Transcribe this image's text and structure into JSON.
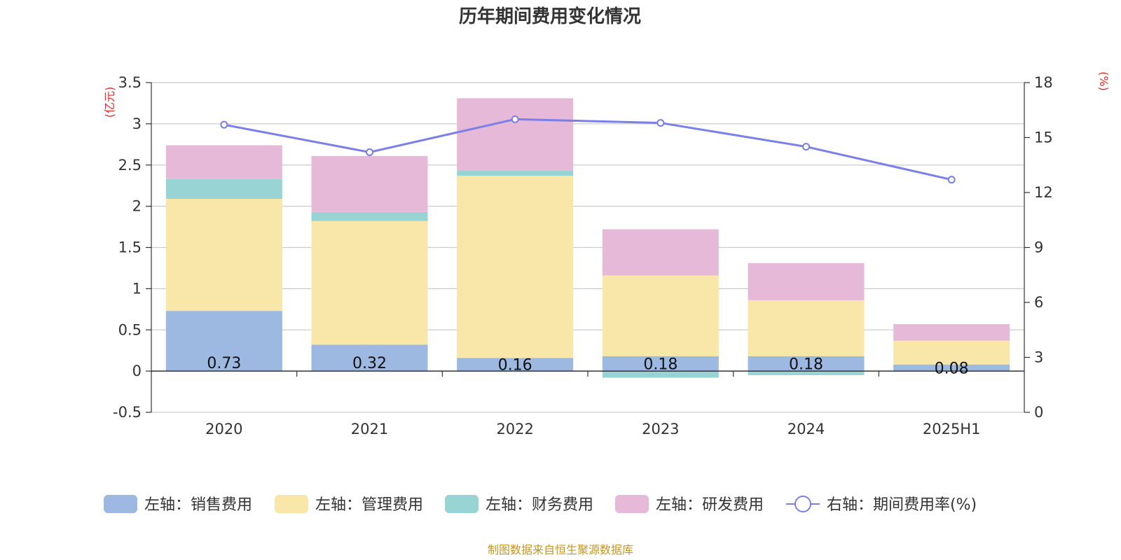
{
  "chart_data": {
    "type": "bar",
    "title": "历年期间费用变化情况",
    "categories": [
      "2020",
      "2021",
      "2022",
      "2023",
      "2024",
      "2025H1"
    ],
    "left_axis": {
      "unit": "(亿元)",
      "ticks": [
        "3.5",
        "3",
        "2.5",
        "2",
        "1.5",
        "1",
        "0.5",
        "0",
        "-0.5"
      ],
      "ylim": [
        -0.5,
        3.5
      ]
    },
    "right_axis": {
      "unit": "(%)",
      "ticks": [
        "18",
        "15",
        "12",
        "9",
        "6",
        "3",
        "0"
      ],
      "ylim": [
        0,
        18
      ]
    },
    "stacked": true,
    "series": [
      {
        "name": "左轴：销售费用",
        "type": "bar",
        "axis": "left",
        "color": "#9db8e1",
        "values": [
          0.73,
          0.32,
          0.16,
          0.18,
          0.18,
          0.08
        ],
        "labels": [
          "0.73",
          "0.32",
          "0.16",
          "0.18",
          "0.18",
          "0.08"
        ]
      },
      {
        "name": "左轴：管理费用",
        "type": "bar",
        "axis": "left",
        "color": "#f8e7a8",
        "values": [
          1.36,
          1.5,
          2.21,
          0.98,
          0.68,
          0.29
        ]
      },
      {
        "name": "左轴：财务费用",
        "type": "bar",
        "axis": "left",
        "color": "#98d4d3",
        "values": [
          0.24,
          0.11,
          0.06,
          -0.08,
          -0.05,
          0.0
        ]
      },
      {
        "name": "左轴：研发费用",
        "type": "bar",
        "axis": "left",
        "color": "#e7b9d9",
        "values": [
          0.41,
          0.68,
          0.88,
          0.56,
          0.45,
          0.2
        ]
      },
      {
        "name": "右轴：期间费用率(%)",
        "type": "line",
        "axis": "right",
        "color": "#7b7fe8",
        "values": [
          15.7,
          14.2,
          16.0,
          15.8,
          14.5,
          12.7
        ]
      }
    ],
    "grid": true,
    "legend_position": "bottom"
  },
  "source_note": "制图数据来自恒生聚源数据库"
}
